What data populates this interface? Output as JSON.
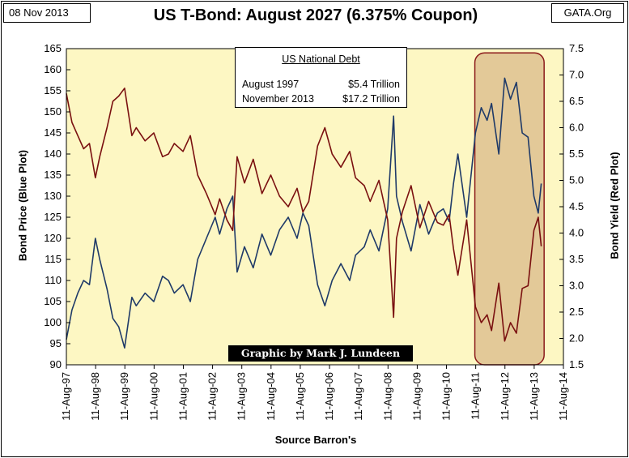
{
  "header": {
    "date": "08 Nov 2013",
    "source": "GATA.Org",
    "title": "US T-Bond: August 2027 (6.375% Coupon)"
  },
  "info_box": {
    "title": "US National Debt",
    "rows": [
      {
        "label": "August 1997",
        "value": "$5.4 Trillion"
      },
      {
        "label": "November 2013",
        "value": "$17.2 Trillion"
      }
    ]
  },
  "credit": "Graphic by Mark J. Lundeen",
  "colors": {
    "plot_bg": "#fdf7c3",
    "price_line": "#1f3a68",
    "yield_line": "#7a1010",
    "highlight_fill": "#d9b98a",
    "highlight_stroke": "#8b1a1a"
  },
  "chart_data": {
    "type": "line",
    "title": "US T-Bond: August 2027 (6.375% Coupon)",
    "xlabel": "Source Barron's",
    "ylabel_left": "Bond Price   (Blue Plot)",
    "ylabel_right": "Bond Yield   (Red Plot)",
    "x_ticks": [
      "11-Aug-97",
      "11-Aug-98",
      "11-Aug-99",
      "11-Aug-00",
      "11-Aug-01",
      "11-Aug-02",
      "11-Aug-03",
      "11-Aug-04",
      "11-Aug-05",
      "11-Aug-06",
      "11-Aug-07",
      "11-Aug-08",
      "11-Aug-09",
      "11-Aug-10",
      "11-Aug-11",
      "11-Aug-12",
      "11-Aug-13",
      "11-Aug-14"
    ],
    "xlim": [
      1997.61,
      2014.61
    ],
    "ylim_left": [
      90,
      165
    ],
    "ylim_right": [
      1.5,
      7.5
    ],
    "y_ticks_left": [
      90,
      95,
      100,
      105,
      110,
      115,
      120,
      125,
      130,
      135,
      140,
      145,
      150,
      155,
      160,
      165
    ],
    "y_ticks_right": [
      1.5,
      2.0,
      2.5,
      3.0,
      3.5,
      4.0,
      4.5,
      5.0,
      5.5,
      6.0,
      6.5,
      7.0,
      7.5
    ],
    "grid": false,
    "highlight": {
      "x_start": 2011.58,
      "x_end": 2013.95,
      "y_start": 90,
      "y_end": 164
    },
    "series": [
      {
        "name": "Bond Price",
        "axis": "left",
        "x": [
          1997.61,
          1997.8,
          1998.0,
          1998.2,
          1998.4,
          1998.6,
          1998.75,
          1999.0,
          1999.2,
          1999.4,
          1999.6,
          1999.85,
          2000.0,
          2000.3,
          2000.6,
          2000.9,
          2001.1,
          2001.3,
          2001.6,
          2001.85,
          2002.1,
          2002.4,
          2002.7,
          2002.85,
          2003.1,
          2003.3,
          2003.45,
          2003.7,
          2004.0,
          2004.3,
          2004.6,
          2004.9,
          2005.2,
          2005.5,
          2005.7,
          2005.9,
          2006.2,
          2006.45,
          2006.7,
          2007.0,
          2007.3,
          2007.5,
          2007.8,
          2008.0,
          2008.3,
          2008.6,
          2008.8,
          2008.9,
          2009.1,
          2009.4,
          2009.7,
          2010.0,
          2010.3,
          2010.5,
          2010.7,
          2010.85,
          2011.0,
          2011.3,
          2011.6,
          2011.8,
          2012.0,
          2012.15,
          2012.4,
          2012.6,
          2012.8,
          2013.0,
          2013.2,
          2013.4,
          2013.6,
          2013.75,
          2013.85
        ],
        "values": [
          96,
          103,
          107,
          110,
          109,
          120,
          115,
          108,
          101,
          99,
          94,
          106,
          104,
          107,
          105,
          111,
          110,
          107,
          109,
          105,
          115,
          120,
          125,
          121,
          127,
          130,
          112,
          118,
          113,
          121,
          116,
          122,
          125,
          120,
          126,
          123,
          109,
          104,
          110,
          114,
          110,
          116,
          118,
          122,
          117,
          127,
          149,
          130,
          124,
          117,
          128,
          121,
          126,
          127,
          124,
          133,
          140,
          125,
          145,
          151,
          148,
          152,
          140,
          158,
          153,
          157,
          145,
          144,
          130,
          126,
          133
        ]
      },
      {
        "name": "Bond Yield",
        "axis": "right",
        "x": [
          1997.61,
          1997.8,
          1998.0,
          1998.2,
          1998.4,
          1998.6,
          1998.75,
          1999.0,
          1999.2,
          1999.4,
          1999.6,
          1999.85,
          2000.0,
          2000.3,
          2000.6,
          2000.9,
          2001.1,
          2001.3,
          2001.6,
          2001.85,
          2002.1,
          2002.4,
          2002.7,
          2002.85,
          2003.1,
          2003.3,
          2003.45,
          2003.7,
          2004.0,
          2004.3,
          2004.6,
          2004.9,
          2005.2,
          2005.5,
          2005.7,
          2005.9,
          2006.2,
          2006.45,
          2006.7,
          2007.0,
          2007.3,
          2007.5,
          2007.8,
          2008.0,
          2008.3,
          2008.6,
          2008.8,
          2008.9,
          2009.1,
          2009.4,
          2009.7,
          2010.0,
          2010.3,
          2010.5,
          2010.7,
          2010.85,
          2011.0,
          2011.3,
          2011.6,
          2011.8,
          2012.0,
          2012.15,
          2012.4,
          2012.6,
          2012.8,
          2013.0,
          2013.2,
          2013.4,
          2013.6,
          2013.75,
          2013.85
        ],
        "values": [
          6.65,
          6.1,
          5.85,
          5.6,
          5.7,
          5.05,
          5.45,
          6.0,
          6.5,
          6.6,
          6.75,
          5.85,
          6.0,
          5.75,
          5.9,
          5.45,
          5.5,
          5.7,
          5.55,
          5.85,
          5.1,
          4.75,
          4.35,
          4.65,
          4.25,
          4.05,
          5.45,
          4.95,
          5.4,
          4.75,
          5.1,
          4.7,
          4.5,
          4.85,
          4.4,
          4.6,
          5.65,
          6.0,
          5.5,
          5.25,
          5.55,
          5.05,
          4.9,
          4.6,
          5.0,
          4.25,
          2.4,
          3.9,
          4.4,
          4.9,
          4.1,
          4.6,
          4.2,
          4.15,
          4.35,
          3.7,
          3.2,
          4.25,
          2.6,
          2.3,
          2.45,
          2.15,
          3.05,
          1.95,
          2.3,
          2.1,
          2.95,
          3.0,
          4.05,
          4.3,
          3.75
        ]
      }
    ]
  }
}
